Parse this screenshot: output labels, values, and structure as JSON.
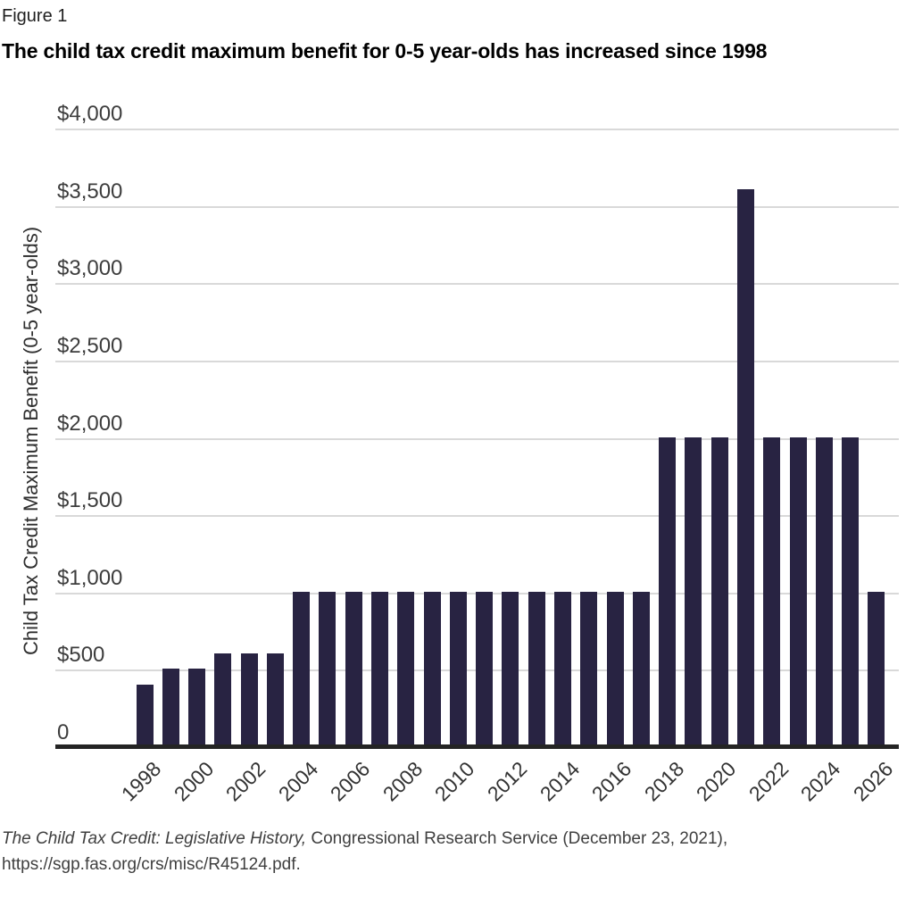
{
  "figure_label": "Figure 1",
  "source": {
    "italic": "The Child Tax Credit: Legislative History,",
    "normal": " Congressional Research Service (December 23, 2021),",
    "line2": "https://sgp.fas.org/crs/misc/R45124.pdf."
  },
  "chart_data": {
    "type": "bar",
    "title": "The child tax credit maximum benefit for 0-5 year-olds has increased since 1998",
    "xlabel": "",
    "ylabel": "Child Tax Credit Maximum Benefit (0-5 year-olds)",
    "ylim": [
      0,
      4000
    ],
    "ytick_interval": 500,
    "yticks": [
      {
        "value": 0,
        "label": "0"
      },
      {
        "value": 500,
        "label": "$500"
      },
      {
        "value": 1000,
        "label": "$1,000"
      },
      {
        "value": 1500,
        "label": "$1,500"
      },
      {
        "value": 2000,
        "label": "$2,000"
      },
      {
        "value": 2500,
        "label": "$2,500"
      },
      {
        "value": 3000,
        "label": "$3,000"
      },
      {
        "value": 3500,
        "label": "$3,500"
      },
      {
        "value": 4000,
        "label": "$4,000"
      }
    ],
    "xtick_labels": [
      "1998",
      "2000",
      "2002",
      "2004",
      "2006",
      "2008",
      "2010",
      "2012",
      "2014",
      "2016",
      "2018",
      "2020",
      "2022",
      "2024",
      "2026"
    ],
    "grid": true,
    "legend": false,
    "bar_color": "#282342",
    "categories": [
      1998,
      1999,
      2000,
      2001,
      2002,
      2003,
      2004,
      2005,
      2006,
      2007,
      2008,
      2009,
      2010,
      2011,
      2012,
      2013,
      2014,
      2015,
      2016,
      2017,
      2018,
      2019,
      2020,
      2021,
      2022,
      2023,
      2024,
      2025,
      2026
    ],
    "values": [
      400,
      500,
      500,
      600,
      600,
      600,
      1000,
      1000,
      1000,
      1000,
      1000,
      1000,
      1000,
      1000,
      1000,
      1000,
      1000,
      1000,
      1000,
      1000,
      2000,
      2000,
      2000,
      3600,
      2000,
      2000,
      2000,
      2000,
      1000
    ]
  }
}
